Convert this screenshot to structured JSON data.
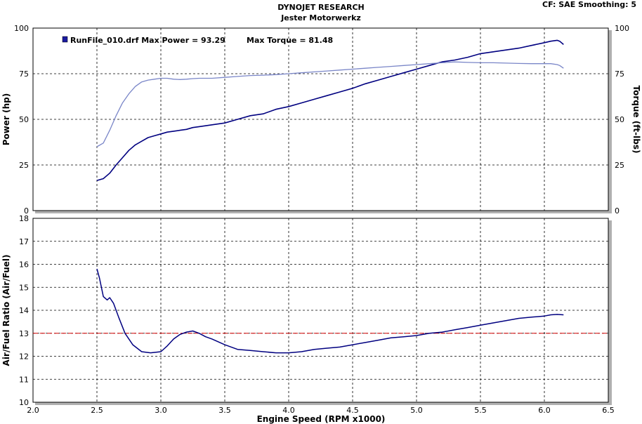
{
  "header": {
    "title": "DYNOJET RESEARCH",
    "subtitle": "Jester Motorwerkz",
    "corrections": "CF: SAE  Smoothing: 5"
  },
  "colors": {
    "power": "#000080",
    "torque": "#7a86c8",
    "afr": "#000080",
    "reference": "#d40000",
    "legend_swatch": "#1a1aa0"
  },
  "legend": {
    "entry": "RunFile_010.drf Max Power = 93.29",
    "torque_text": "Max Torque = 81.48"
  },
  "chart_data": [
    {
      "type": "line",
      "panel": "power-torque",
      "xlabel": "",
      "ylabel": "Power (hp)",
      "y2label": "Torque (ft-lbs)",
      "xlim": [
        2.0,
        6.5
      ],
      "ylim": [
        0,
        100
      ],
      "y2lim": [
        0,
        100
      ],
      "xticks": [
        2.0,
        2.5,
        3.0,
        3.5,
        4.0,
        4.5,
        5.0,
        5.5,
        6.0,
        6.5
      ],
      "yticks": [
        0,
        25,
        50,
        75,
        100
      ],
      "grid": true,
      "legend_position": "top-left",
      "series": [
        {
          "name": "Power",
          "axis": "left",
          "x": [
            2.5,
            2.55,
            2.6,
            2.65,
            2.7,
            2.75,
            2.8,
            2.85,
            2.9,
            2.95,
            3.0,
            3.05,
            3.1,
            3.15,
            3.2,
            3.25,
            3.3,
            3.4,
            3.5,
            3.6,
            3.7,
            3.8,
            3.9,
            4.0,
            4.1,
            4.2,
            4.3,
            4.4,
            4.5,
            4.6,
            4.7,
            4.8,
            4.9,
            5.0,
            5.1,
            5.2,
            5.3,
            5.4,
            5.5,
            5.6,
            5.7,
            5.8,
            5.9,
            6.0,
            6.05,
            6.1,
            6.12,
            6.15
          ],
          "values": [
            16.5,
            17.5,
            20.5,
            25,
            29,
            33,
            36,
            38,
            40,
            41,
            42,
            43,
            43.5,
            44,
            44.5,
            45.5,
            46,
            47,
            48,
            50,
            52,
            53,
            55.5,
            57,
            59,
            61,
            63,
            65,
            67,
            69.5,
            71.5,
            73.5,
            75.5,
            77.5,
            79.5,
            81.5,
            82.5,
            84,
            86,
            87,
            88,
            89,
            90.5,
            92,
            92.8,
            93.29,
            92.8,
            91
          ]
        },
        {
          "name": "Torque",
          "axis": "right",
          "x": [
            2.5,
            2.55,
            2.6,
            2.65,
            2.7,
            2.75,
            2.8,
            2.85,
            2.9,
            2.95,
            3.0,
            3.05,
            3.1,
            3.15,
            3.2,
            3.25,
            3.3,
            3.4,
            3.5,
            3.6,
            3.7,
            3.8,
            3.9,
            4.0,
            4.1,
            4.2,
            4.3,
            4.4,
            4.5,
            4.6,
            4.7,
            4.8,
            4.9,
            5.0,
            5.1,
            5.2,
            5.3,
            5.4,
            5.5,
            5.6,
            5.7,
            5.8,
            5.9,
            6.0,
            6.05,
            6.1,
            6.12,
            6.15
          ],
          "values": [
            35,
            37,
            44,
            52,
            59,
            64,
            68,
            70.5,
            71.5,
            72,
            72.5,
            72.5,
            72,
            71.8,
            72,
            72.3,
            72.5,
            72.5,
            73,
            73.5,
            74,
            74.2,
            74.5,
            75,
            75.5,
            76,
            76.5,
            77,
            77.5,
            78,
            78.5,
            79,
            79.5,
            80,
            80.5,
            81,
            81.48,
            81.2,
            81,
            81,
            80.8,
            80.6,
            80.5,
            80.5,
            80.5,
            80,
            79.5,
            78
          ]
        }
      ]
    },
    {
      "type": "line",
      "panel": "air-fuel",
      "xlabel": "Engine Speed (RPM x1000)",
      "ylabel": "Air/Fuel Ratio (Air/Fuel)",
      "xlim": [
        2.0,
        6.5
      ],
      "ylim": [
        10,
        18
      ],
      "xticks": [
        2.0,
        2.5,
        3.0,
        3.5,
        4.0,
        4.5,
        5.0,
        5.5,
        6.0,
        6.5
      ],
      "xticklabels": [
        "2.0",
        "2.5",
        "3.0",
        "3.5",
        "4.0",
        "4.5",
        "5.0",
        "5.5",
        "6.0",
        "6.5"
      ],
      "yticks": [
        10,
        11,
        12,
        13,
        14,
        15,
        16,
        17,
        18
      ],
      "grid": true,
      "reference_line": 13.0,
      "series": [
        {
          "name": "Air/Fuel",
          "x": [
            2.5,
            2.52,
            2.55,
            2.58,
            2.6,
            2.63,
            2.67,
            2.72,
            2.78,
            2.85,
            2.92,
            3.0,
            3.05,
            3.1,
            3.15,
            3.2,
            3.25,
            3.3,
            3.35,
            3.4,
            3.5,
            3.6,
            3.7,
            3.8,
            3.9,
            4.0,
            4.1,
            4.2,
            4.3,
            4.4,
            4.5,
            4.6,
            4.7,
            4.8,
            4.9,
            5.0,
            5.1,
            5.2,
            5.3,
            5.4,
            5.5,
            5.6,
            5.7,
            5.8,
            5.9,
            6.0,
            6.05,
            6.1,
            6.15
          ],
          "values": [
            15.8,
            15.4,
            14.6,
            14.45,
            14.55,
            14.3,
            13.7,
            13.0,
            12.5,
            12.2,
            12.15,
            12.2,
            12.45,
            12.75,
            12.95,
            13.05,
            13.1,
            13.0,
            12.85,
            12.75,
            12.5,
            12.3,
            12.25,
            12.2,
            12.15,
            12.15,
            12.2,
            12.3,
            12.35,
            12.4,
            12.5,
            12.6,
            12.7,
            12.8,
            12.85,
            12.9,
            13.0,
            13.05,
            13.15,
            13.25,
            13.35,
            13.45,
            13.55,
            13.65,
            13.7,
            13.75,
            13.8,
            13.82,
            13.8
          ]
        }
      ]
    }
  ]
}
